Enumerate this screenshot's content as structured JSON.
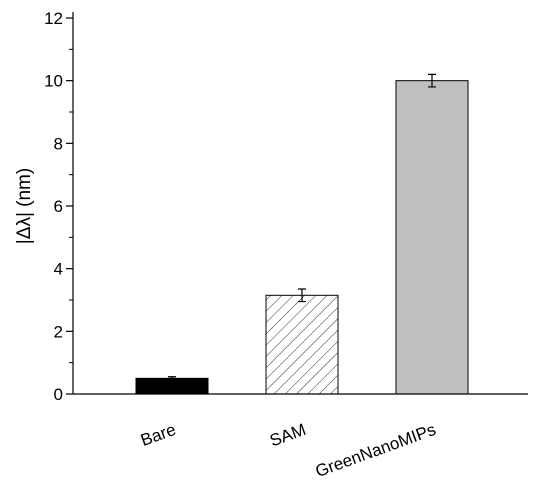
{
  "chart_data": {
    "type": "bar",
    "y_label": "|Δλ| (nm)",
    "categories": [
      "Bare",
      "SAM",
      "GreenNanoMIPs"
    ],
    "values": [
      0.5,
      3.15,
      10.0
    ],
    "errors": [
      0.05,
      0.2,
      0.2
    ],
    "colors": [
      "#000000",
      "#ffffff",
      "#c0c0c0"
    ],
    "hatch": [
      false,
      true,
      false
    ],
    "ylim": [
      0,
      12
    ],
    "yticks": [
      0,
      2,
      4,
      6,
      8,
      10,
      12
    ],
    "yminor_ticks": [
      1,
      3,
      5,
      7,
      9,
      11
    ]
  }
}
